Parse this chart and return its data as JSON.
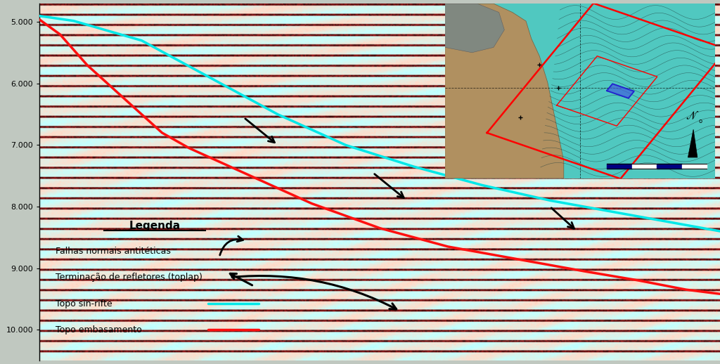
{
  "fig_width": 10.24,
  "fig_height": 5.18,
  "dpi": 100,
  "y_ticks": [
    5000,
    6000,
    7000,
    8000,
    9000,
    10000
  ],
  "y_labels": [
    "5.000",
    "6.000",
    "7.000",
    "8.000",
    "9.000",
    "10.000"
  ],
  "ylim_bottom": 10500,
  "ylim_top": 4700,
  "xlim_left": 0,
  "xlim_right": 100,
  "legend_title": "Legenda",
  "legend_items": [
    "Falhas normais antitéticas",
    "Terminação de refletores (toplap)",
    "Topo sin-rifte",
    "Topo embasamento"
  ],
  "cyan_line_color": "#00e8e8",
  "red_line_color": "#ff1010",
  "seismic_noise_seed": 42,
  "inset_map_bg": "#c8a060",
  "inset_map_sea": "#40c0b0"
}
